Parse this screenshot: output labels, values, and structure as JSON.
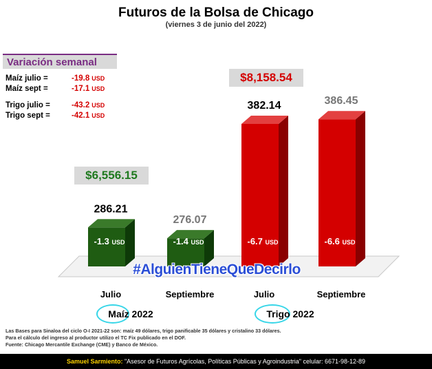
{
  "header": {
    "title": "Futuros de la Bolsa de Chicago",
    "subtitle": "(viernes 3 de junio del 2022)"
  },
  "variacion": {
    "heading": "Variación semanal",
    "rows": [
      {
        "label": "Maíz julio  =",
        "value": "-19.8",
        "unit": "USD"
      },
      {
        "label": "Maíz sept  =",
        "value": "-17.1",
        "unit": "USD"
      },
      {
        "label": "Trigo julio =",
        "value": "-43.2",
        "unit": "USD"
      },
      {
        "label": "Trigo sept =",
        "value": "-42.1",
        "unit": "USD"
      }
    ]
  },
  "totals": {
    "maiz": "$6,556.15",
    "trigo": "$8,158.54"
  },
  "hashtag": "#AlguienTieneQueDecirlo",
  "groups": [
    {
      "name": "Maíz",
      "year": "2022"
    },
    {
      "name": "Trigo",
      "year": "2022"
    }
  ],
  "chart_data": {
    "type": "bar",
    "categories": [
      "Julio",
      "Septiembre",
      "Julio",
      "Septiembre"
    ],
    "values": [
      286.21,
      276.07,
      382.14,
      386.45
    ],
    "value_labels": [
      "286.21",
      "276.07",
      "382.14",
      "386.45"
    ],
    "changes": [
      "-1.3",
      "-1.4",
      "-6.7",
      "-6.6"
    ],
    "change_unit": "USD",
    "series_groups": [
      "Maíz",
      "Maíz",
      "Trigo",
      "Trigo"
    ],
    "colors": [
      "#1f5c12",
      "#1f5c12",
      "#d40000",
      "#d40000"
    ],
    "ylim": [
      250,
      400
    ]
  },
  "notes": [
    "Las Bases para Sinaloa del ciclo O-I 2021-22 son: maíz 49 dólares, trigo panificable 35 dólares y cristalino 33 dólares.",
    "Para el cálculo del ingreso al productor utilizo el TC Fix publicado en el DOF.",
    "Fuente: Chicago Mercantile Exchange (CME) y Banco de México."
  ],
  "footer": {
    "name": "Samuel Sarmiento:",
    "role": " \"Asesor de Futuros Agrícolas, Políticas Públicas y Agroindustria\"",
    "phone": "  celular: 6671-98-12-89"
  }
}
